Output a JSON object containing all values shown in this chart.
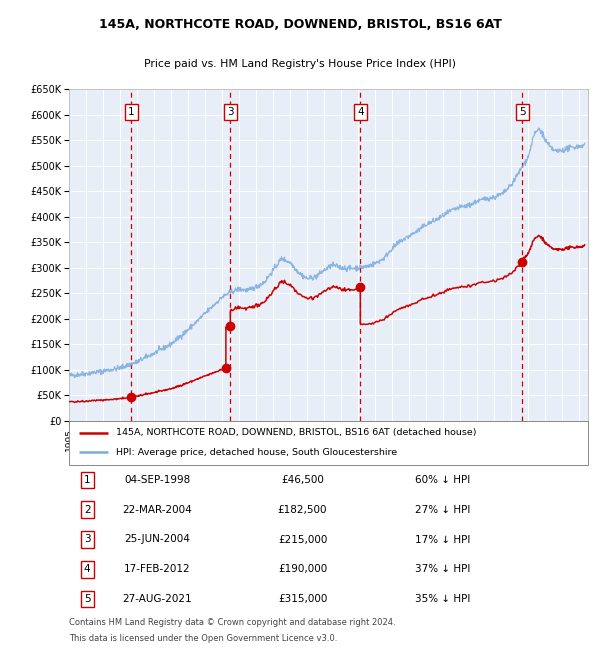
{
  "title_line1": "145A, NORTHCOTE ROAD, DOWNEND, BRISTOL, BS16 6AT",
  "title_line2": "Price paid vs. HM Land Registry's House Price Index (HPI)",
  "legend_label_red": "145A, NORTHCOTE ROAD, DOWNEND, BRISTOL, BS16 6AT (detached house)",
  "legend_label_blue": "HPI: Average price, detached house, South Gloucestershire",
  "footer_line1": "Contains HM Land Registry data © Crown copyright and database right 2024.",
  "footer_line2": "This data is licensed under the Open Government Licence v3.0.",
  "sales": [
    {
      "num": 1,
      "date_str": "04-SEP-1998",
      "date_x": 1998.67,
      "price": 46500,
      "pct": "60% ↓ HPI"
    },
    {
      "num": 2,
      "date_str": "22-MAR-2004",
      "date_x": 2004.22,
      "price": 182500,
      "pct": "27% ↓ HPI"
    },
    {
      "num": 3,
      "date_str": "25-JUN-2004",
      "date_x": 2004.48,
      "price": 215000,
      "pct": "17% ↓ HPI"
    },
    {
      "num": 4,
      "date_str": "17-FEB-2012",
      "date_x": 2012.12,
      "price": 190000,
      "pct": "37% ↓ HPI"
    },
    {
      "num": 5,
      "date_str": "27-AUG-2021",
      "date_x": 2021.65,
      "price": 315000,
      "pct": "35% ↓ HPI"
    }
  ],
  "vline_sales": [
    1,
    3,
    4,
    5
  ],
  "xmin": 1995,
  "xmax": 2025.5,
  "ymin": 0,
  "ymax": 650000,
  "yticks": [
    0,
    50000,
    100000,
    150000,
    200000,
    250000,
    300000,
    350000,
    400000,
    450000,
    500000,
    550000,
    600000,
    650000
  ],
  "bg_color": "#e8eef8",
  "grid_color": "#ffffff",
  "red_color": "#cc0000",
  "blue_color": "#7aaadd",
  "dashed_red": "#cc0000",
  "hpi_anchors": [
    [
      1995.0,
      88000
    ],
    [
      1996.0,
      92000
    ],
    [
      1997.0,
      97000
    ],
    [
      1998.0,
      103000
    ],
    [
      1999.0,
      115000
    ],
    [
      2000.0,
      132000
    ],
    [
      2001.0,
      150000
    ],
    [
      2002.0,
      178000
    ],
    [
      2003.0,
      210000
    ],
    [
      2004.0,
      242000
    ],
    [
      2004.5,
      252000
    ],
    [
      2005.0,
      258000
    ],
    [
      2005.5,
      255000
    ],
    [
      2006.0,
      262000
    ],
    [
      2006.5,
      272000
    ],
    [
      2007.0,
      295000
    ],
    [
      2007.5,
      318000
    ],
    [
      2008.0,
      310000
    ],
    [
      2008.5,
      290000
    ],
    [
      2009.0,
      278000
    ],
    [
      2009.5,
      282000
    ],
    [
      2010.0,
      295000
    ],
    [
      2010.5,
      305000
    ],
    [
      2011.0,
      300000
    ],
    [
      2011.5,
      298000
    ],
    [
      2012.0,
      300000
    ],
    [
      2012.5,
      302000
    ],
    [
      2013.0,
      308000
    ],
    [
      2013.5,
      318000
    ],
    [
      2014.0,
      338000
    ],
    [
      2014.5,
      352000
    ],
    [
      2015.0,
      362000
    ],
    [
      2015.5,
      372000
    ],
    [
      2016.0,
      385000
    ],
    [
      2016.5,
      392000
    ],
    [
      2017.0,
      402000
    ],
    [
      2017.5,
      412000
    ],
    [
      2018.0,
      418000
    ],
    [
      2018.5,
      422000
    ],
    [
      2019.0,
      430000
    ],
    [
      2019.5,
      435000
    ],
    [
      2020.0,
      438000
    ],
    [
      2020.5,
      445000
    ],
    [
      2021.0,
      462000
    ],
    [
      2021.5,
      490000
    ],
    [
      2022.0,
      518000
    ],
    [
      2022.3,
      558000
    ],
    [
      2022.6,
      572000
    ],
    [
      2022.8,
      565000
    ],
    [
      2023.0,
      548000
    ],
    [
      2023.3,
      535000
    ],
    [
      2023.6,
      528000
    ],
    [
      2024.0,
      530000
    ],
    [
      2024.5,
      535000
    ],
    [
      2025.0,
      538000
    ],
    [
      2025.3,
      540000
    ]
  ]
}
